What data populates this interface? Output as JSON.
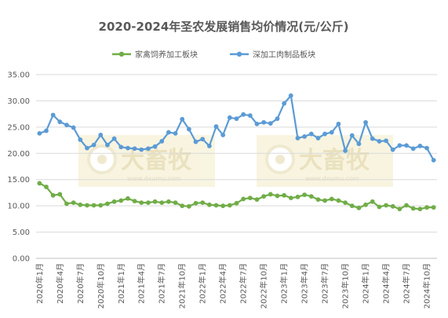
{
  "chart_data": {
    "type": "line",
    "title": "2020-2024年圣农发展销售均价情况(元/公斤)",
    "ylim": [
      0,
      35
    ],
    "yticks": [
      "0.00",
      "5.00",
      "10.00",
      "15.00",
      "20.00",
      "25.00",
      "30.00",
      "35.00"
    ],
    "grid": true,
    "legend_position": "top-center",
    "x": [
      "2020年1月",
      "2020年2月",
      "2020年3月",
      "2020年4月",
      "2020年5月",
      "2020年6月",
      "2020年7月",
      "2020年8月",
      "2020年9月",
      "2020年10月",
      "2020年11月",
      "2020年12月",
      "2021年1月",
      "2021年2月",
      "2021年3月",
      "2021年4月",
      "2021年5月",
      "2021年6月",
      "2021年7月",
      "2021年8月",
      "2021年9月",
      "2021年10月",
      "2021年11月",
      "2021年12月",
      "2022年1月",
      "2022年2月",
      "2022年3月",
      "2022年4月",
      "2022年5月",
      "2022年6月",
      "2022年7月",
      "2022年8月",
      "2022年9月",
      "2022年10月",
      "2022年11月",
      "2022年12月",
      "2023年1月",
      "2023年2月",
      "2023年3月",
      "2023年4月",
      "2023年5月",
      "2023年6月",
      "2023年7月",
      "2023年8月",
      "2023年9月",
      "2023年10月",
      "2023年11月",
      "2023年12月",
      "2024年1月",
      "2024年2月",
      "2024年3月",
      "2024年4月",
      "2024年5月",
      "2024年6月",
      "2024年7月",
      "2024年8月",
      "2024年9月",
      "2024年10月",
      "2024年11月"
    ],
    "xtick_labels": [
      "2020年1月",
      "2020年4月",
      "2020年7月",
      "2020年10月",
      "2021年1月",
      "2021年4月",
      "2021年7月",
      "2021年10月",
      "2022年1月",
      "2022年4月",
      "2022年7月",
      "2022年10月",
      "2023年1月",
      "2023年4月",
      "2023年7月",
      "2023年10月",
      "2024年1月",
      "2024年4月",
      "2024年7月",
      "2024年10月"
    ],
    "series": [
      {
        "name": "家禽饲养加工板块",
        "color": "#70ad47",
        "values": [
          14.3,
          13.6,
          12.0,
          12.2,
          10.4,
          10.6,
          10.2,
          10.1,
          10.1,
          10.1,
          10.4,
          10.8,
          11.0,
          11.4,
          10.9,
          10.6,
          10.6,
          10.8,
          10.6,
          10.8,
          10.6,
          10.0,
          9.9,
          10.5,
          10.6,
          10.2,
          10.1,
          10.0,
          10.1,
          10.5,
          11.3,
          11.5,
          11.2,
          11.8,
          12.2,
          11.9,
          12.0,
          11.5,
          11.7,
          12.1,
          11.8,
          11.2,
          11.0,
          11.3,
          11.0,
          10.6,
          10.0,
          9.6,
          10.2,
          10.8,
          9.8,
          10.1,
          9.9,
          9.4,
          10.1,
          9.5,
          9.4,
          9.7,
          9.7
        ]
      },
      {
        "name": "深加工肉制品板块",
        "color": "#5b9bd5",
        "values": [
          23.8,
          24.3,
          27.3,
          26.0,
          25.4,
          24.9,
          22.6,
          21.0,
          21.6,
          23.5,
          21.6,
          22.8,
          21.2,
          21.0,
          20.9,
          20.7,
          20.9,
          21.3,
          22.3,
          24.0,
          23.8,
          26.5,
          24.6,
          22.2,
          22.7,
          21.4,
          25.1,
          23.5,
          26.8,
          26.6,
          27.4,
          27.2,
          25.6,
          25.9,
          25.7,
          26.6,
          29.5,
          31.0,
          22.9,
          23.2,
          23.7,
          22.9,
          23.7,
          24.0,
          25.6,
          20.5,
          23.4,
          21.8,
          25.9,
          22.8,
          22.3,
          22.4,
          20.7,
          21.5,
          21.5,
          20.9,
          21.4,
          21.0,
          18.7
        ]
      }
    ],
    "watermark": {
      "text": "大畜牧",
      "url": "www.dxumu.com"
    }
  }
}
